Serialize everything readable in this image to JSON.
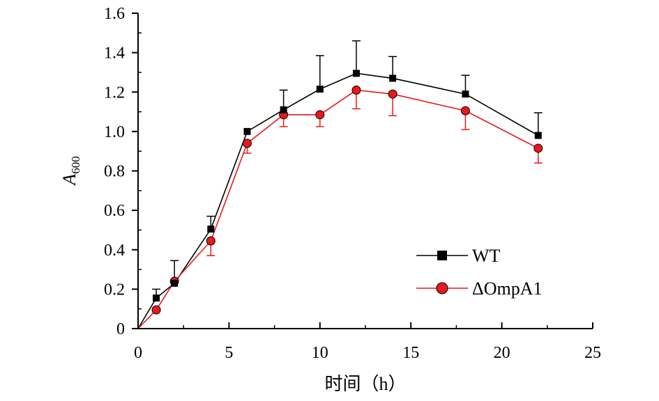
{
  "chart_data": {
    "type": "line",
    "title": "",
    "xlabel": "时间（h）",
    "ylabel_main": "A",
    "ylabel_sub": "600",
    "xlim": [
      0,
      25
    ],
    "ylim": [
      0,
      1.6
    ],
    "x_ticks": [
      0,
      5,
      10,
      15,
      20,
      25
    ],
    "x_tick_labels": [
      "0",
      "5",
      "10",
      "15",
      "20",
      "25"
    ],
    "y_ticks": [
      0,
      0.2,
      0.4,
      0.6,
      0.8,
      1.0,
      1.2,
      1.4,
      1.6
    ],
    "y_tick_labels": [
      "0",
      "0.2",
      "0.4",
      "0.6",
      "0.8",
      "1.0",
      "1.2",
      "1.4",
      "1.6"
    ],
    "grid": false,
    "legend_position": "bottom-right",
    "series": [
      {
        "name": "WT",
        "color": "#000000",
        "marker": "square",
        "x": [
          0,
          1,
          2,
          4,
          6,
          8,
          10,
          12,
          14,
          18,
          22
        ],
        "y": [
          0,
          0.155,
          0.23,
          0.505,
          1.0,
          1.11,
          1.215,
          1.295,
          1.27,
          1.19,
          0.98
        ],
        "err": [
          0,
          0.045,
          0.115,
          0.065,
          0,
          0.1,
          0.17,
          0.165,
          0.11,
          0.095,
          0.115
        ]
      },
      {
        "name": "ΔOmpA1",
        "color": "#e8191b",
        "marker": "circle",
        "x": [
          0,
          1,
          2,
          4,
          6,
          8,
          10,
          12,
          14,
          18,
          22
        ],
        "y": [
          0,
          0.095,
          0.24,
          0.445,
          0.94,
          1.085,
          1.085,
          1.21,
          1.19,
          1.105,
          0.915
        ],
        "err": [
          0,
          0,
          0,
          0.075,
          0.05,
          0.06,
          0.06,
          0.095,
          0.11,
          0.095,
          0.075
        ]
      }
    ]
  }
}
